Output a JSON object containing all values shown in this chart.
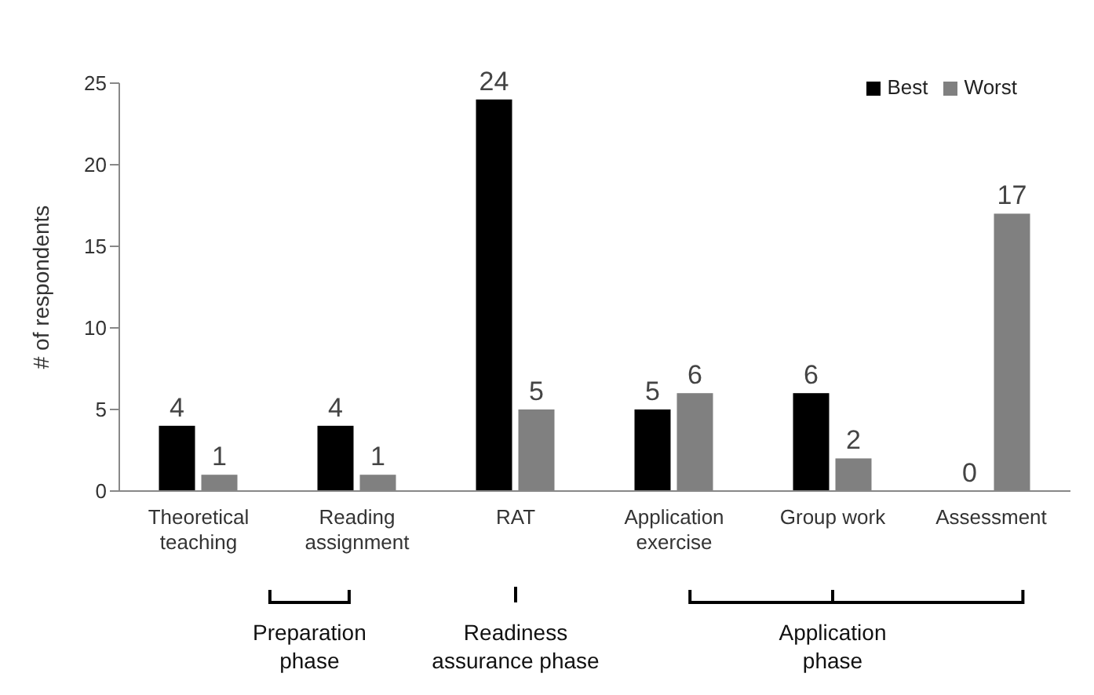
{
  "chart_data": {
    "type": "bar",
    "ylabel": "# of respondents",
    "categories": [
      "Theoretical teaching",
      "Reading assignment",
      "RAT",
      "Application exercise",
      "Group work",
      "Assessment"
    ],
    "series": [
      {
        "name": "Best",
        "color": "#000000",
        "values": [
          4,
          4,
          24,
          5,
          6,
          0
        ]
      },
      {
        "name": "Worst",
        "color": "#808080",
        "values": [
          1,
          1,
          5,
          6,
          2,
          17
        ]
      }
    ],
    "ylim": [
      0,
      25
    ],
    "yticks": [
      0,
      5,
      10,
      15,
      20,
      25
    ],
    "grid": false,
    "legend": "top right",
    "data_labels": true,
    "annotations": [
      "Preparation phase",
      "Readiness assurance phase",
      "Application phase"
    ]
  }
}
